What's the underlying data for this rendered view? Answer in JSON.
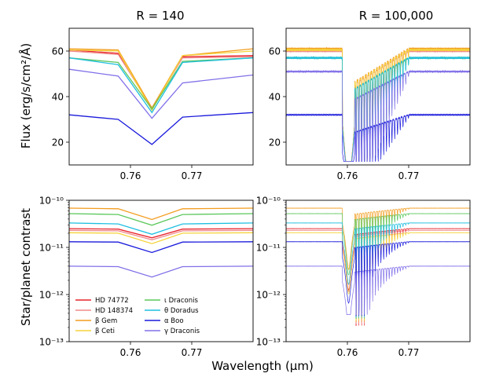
{
  "figure": {
    "ylabel_top": "Flux (erg/s/cm²/Å)",
    "ylabel_bottom": "Star/planet contrast",
    "xlabel": "Wavelength (μm)"
  },
  "legend": {
    "entries": [
      {
        "label": "HD 74772",
        "color": "#e8242c"
      },
      {
        "label": "HD 148374",
        "color": "#f08a8a"
      },
      {
        "label": "β Gem",
        "color": "#f39c1e"
      },
      {
        "label": "β Ceti",
        "color": "#f5d33a"
      },
      {
        "label": "ι Draconis",
        "color": "#5cc85c"
      },
      {
        "label": "θ Doradus",
        "color": "#1fbfe0"
      },
      {
        "label": "α Boo",
        "color": "#1a1adc"
      },
      {
        "label": "γ Draconis",
        "color": "#8070e8"
      }
    ]
  },
  "chart_data": [
    {
      "type": "line",
      "title": "R = 140",
      "xlabel": "",
      "ylabel": "Flux (erg/s/cm²/Å)",
      "xlim": [
        0.75,
        0.78
      ],
      "ylim": [
        10,
        70
      ],
      "yscale": "linear",
      "xticks": [
        "0.76",
        "0.77"
      ],
      "yticks": [
        "20",
        "40",
        "60"
      ],
      "x": [
        0.75,
        0.758,
        0.7635,
        0.7685,
        0.78
      ],
      "series": [
        {
          "name": "HD 74772",
          "values": [
            60.5,
            59,
            35,
            57.5,
            58
          ]
        },
        {
          "name": "HD 148374",
          "values": [
            60,
            58.5,
            35,
            57,
            57.5
          ]
        },
        {
          "name": "β Gem",
          "values": [
            61,
            60.5,
            35,
            58,
            61
          ]
        },
        {
          "name": "β Ceti",
          "values": [
            60.5,
            60,
            34,
            58,
            60
          ]
        },
        {
          "name": "ι Draconis",
          "values": [
            57,
            55,
            34.5,
            55.5,
            57
          ]
        },
        {
          "name": "θ Doradus",
          "values": [
            57,
            54,
            33,
            55,
            57
          ]
        },
        {
          "name": "α Boo",
          "values": [
            32,
            30,
            19,
            31,
            33
          ]
        },
        {
          "name": "γ Draconis",
          "values": [
            52,
            49,
            30.5,
            46,
            49.5
          ]
        }
      ]
    },
    {
      "type": "line",
      "title": "R = 100,000",
      "xlabel": "",
      "ylabel": "",
      "xlim": [
        0.75,
        0.78
      ],
      "ylim": [
        10,
        70
      ],
      "yscale": "linear",
      "xticks": [
        "0.76",
        "0.77"
      ],
      "yticks": [
        "20",
        "40",
        "60"
      ],
      "note": "high-resolution spectrum: continuum levels as in R = 140 panel with dense O2 A-band absorption lines between 0.759 and 0.770 μm, deepest near 0.761 μm",
      "series": [
        {
          "name": "HD 74772",
          "continuum": 60.5
        },
        {
          "name": "HD 148374",
          "continuum": 60
        },
        {
          "name": "β Gem",
          "continuum": 61
        },
        {
          "name": "β Ceti",
          "continuum": 60.5
        },
        {
          "name": "ι Draconis",
          "continuum": 57
        },
        {
          "name": "θ Doradus",
          "continuum": 57
        },
        {
          "name": "α Boo",
          "continuum": 32
        },
        {
          "name": "γ Draconis",
          "continuum": 51
        }
      ]
    },
    {
      "type": "line",
      "title": "",
      "xlabel": "",
      "ylabel": "Star/planet contrast",
      "xlim": [
        0.75,
        0.78
      ],
      "ylim": [
        1e-13,
        1e-10
      ],
      "yscale": "log",
      "xticks": [
        "0.76",
        "0.77"
      ],
      "yticks": [
        "10⁻¹³",
        "10⁻¹²",
        "10⁻¹¹",
        "10⁻¹⁰"
      ],
      "x": [
        0.75,
        0.758,
        0.7635,
        0.7685,
        0.78
      ],
      "series": [
        {
          "name": "HD 74772",
          "values": [
            2.5e-11,
            2.45e-11,
            1.6e-11,
            2.45e-11,
            2.5e-11
          ]
        },
        {
          "name": "HD 148374",
          "values": [
            2.3e-11,
            2.25e-11,
            1.45e-11,
            2.25e-11,
            2.3e-11
          ]
        },
        {
          "name": "β Gem",
          "values": [
            6.8e-11,
            6.6e-11,
            3.9e-11,
            6.6e-11,
            6.8e-11
          ]
        },
        {
          "name": "β Ceti",
          "values": [
            2.05e-11,
            2e-11,
            1.2e-11,
            2e-11,
            2.05e-11
          ]
        },
        {
          "name": "ι Draconis",
          "values": [
            5.2e-11,
            5e-11,
            2.95e-11,
            5e-11,
            5.2e-11
          ]
        },
        {
          "name": "θ Doradus",
          "values": [
            3.3e-11,
            3.15e-11,
            1.9e-11,
            3.15e-11,
            3.3e-11
          ]
        },
        {
          "name": "α Boo",
          "values": [
            1.32e-11,
            1.3e-11,
            7.8e-12,
            1.3e-11,
            1.32e-11
          ]
        },
        {
          "name": "γ Draconis",
          "values": [
            4e-12,
            3.9e-12,
            2.35e-12,
            3.9e-12,
            4e-12
          ]
        }
      ]
    },
    {
      "type": "line",
      "title": "",
      "xlabel": "",
      "ylabel": "",
      "xlim": [
        0.75,
        0.78
      ],
      "ylim": [
        1e-13,
        1e-10
      ],
      "yscale": "log",
      "xticks": [
        "0.76",
        "0.77"
      ],
      "yticks": [
        "10⁻¹³",
        "10⁻¹²",
        "10⁻¹¹",
        "10⁻¹⁰"
      ],
      "note": "high-resolution contrast with dense absorption lines between 0.759 and 0.770 μm",
      "series": [
        {
          "name": "HD 74772",
          "continuum": 2.5e-11
        },
        {
          "name": "HD 148374",
          "continuum": 2.3e-11
        },
        {
          "name": "β Gem",
          "continuum": 6.8e-11
        },
        {
          "name": "β Ceti",
          "continuum": 2.05e-11
        },
        {
          "name": "ι Draconis",
          "continuum": 5.2e-11
        },
        {
          "name": "θ Doradus",
          "continuum": 3.3e-11
        },
        {
          "name": "α Boo",
          "continuum": 1.32e-11
        },
        {
          "name": "γ Draconis",
          "continuum": 4e-12
        }
      ]
    }
  ]
}
